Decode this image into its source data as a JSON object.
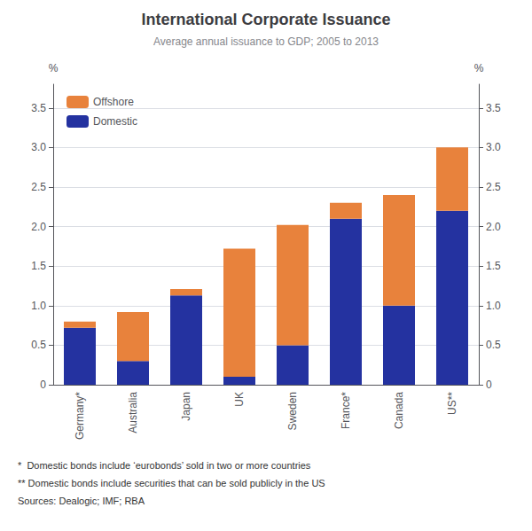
{
  "chart_data": {
    "type": "bar",
    "title": "International Corporate Issuance",
    "subtitle": "Average annual issuance to GDP; 2005 to 2013",
    "categories": [
      "Germany*",
      "Australia",
      "Japan",
      "UK",
      "Sweden",
      "France*",
      "Canada",
      "US**"
    ],
    "series": [
      {
        "name": "Domestic",
        "color": "#2432a0",
        "values": [
          0.72,
          0.3,
          1.13,
          0.1,
          0.5,
          2.1,
          1.0,
          2.2
        ]
      },
      {
        "name": "Offshore",
        "color": "#e8823c",
        "values": [
          0.08,
          0.62,
          0.08,
          1.62,
          1.52,
          0.2,
          1.4,
          0.8
        ]
      }
    ],
    "stacked": true,
    "ylabel": "%",
    "y2label": "%",
    "ylim": [
      0,
      3.8
    ],
    "yticks": [
      0,
      0.5,
      {
        "value": 1.0,
        "label": "1.0"
      },
      1.5,
      {
        "value": 2.0,
        "label": "2.0"
      },
      2.5,
      {
        "value": 3.0,
        "label": "3.0"
      },
      3.5
    ],
    "y2lim": [
      0,
      3.8
    ],
    "y2ticks": [
      0,
      0.5,
      {
        "value": 1.0,
        "label": "1.0"
      },
      1.5,
      {
        "value": 2.0,
        "label": "2.0"
      },
      2.5,
      {
        "value": 3.0,
        "label": "3.0"
      },
      3.5
    ],
    "grid": true,
    "legend": "top-left",
    "annotations": [
      "*  Domestic bonds include ‘eurobonds’ sold in two or more countries",
      "** Domestic bonds include securities that can be sold publicly in the US",
      "Sources: Dealogic; IMF; RBA"
    ]
  }
}
